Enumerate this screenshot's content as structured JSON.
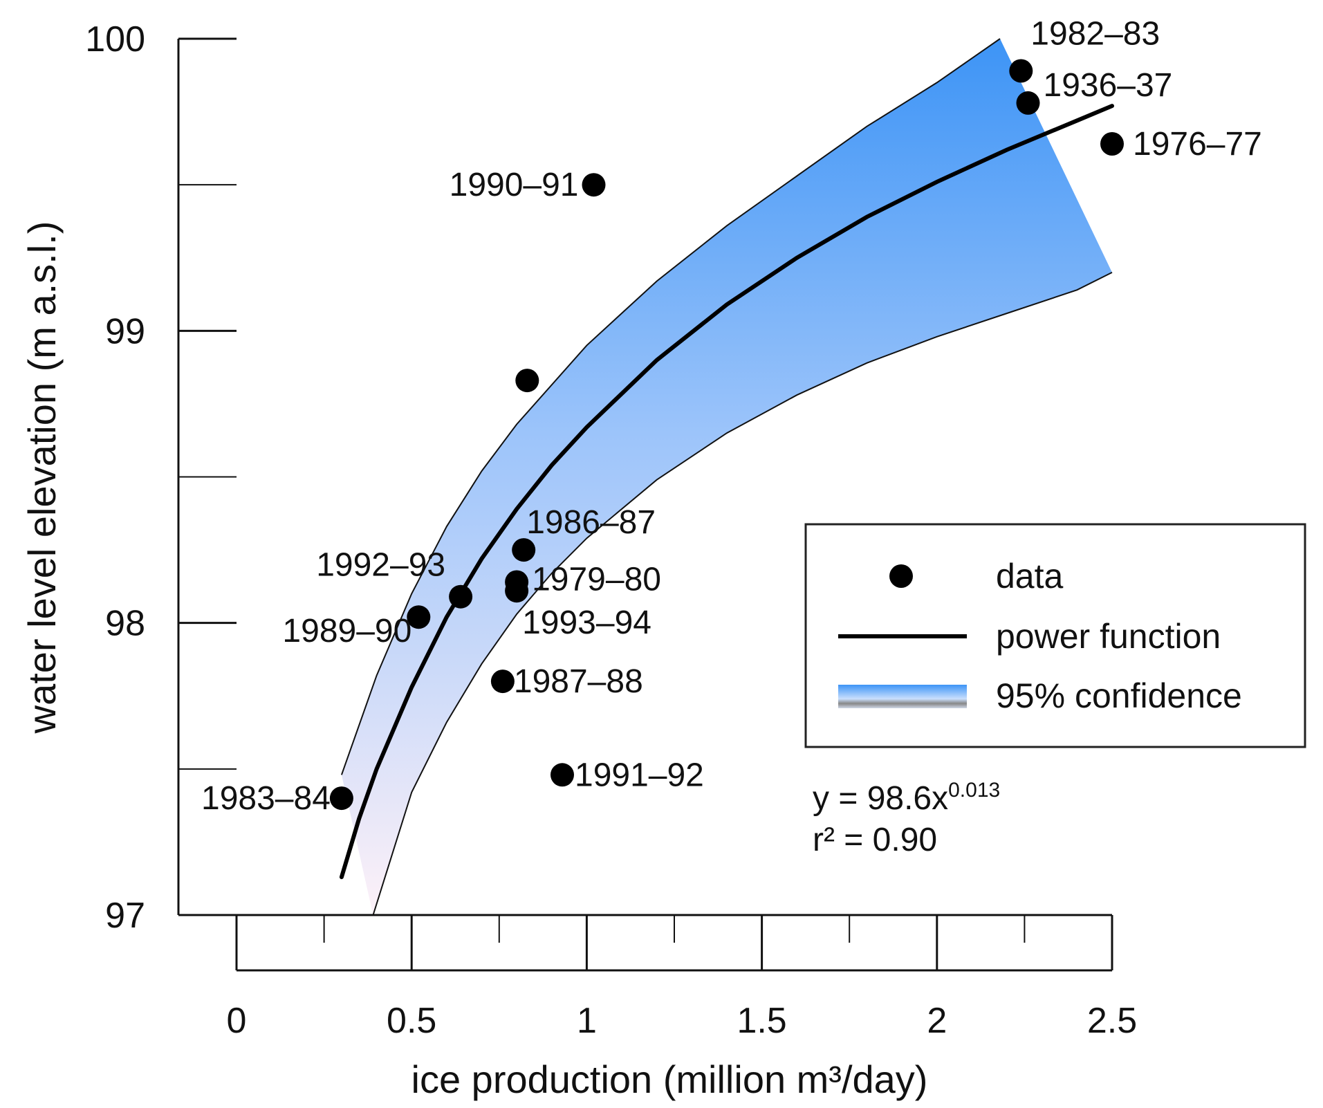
{
  "chart_data": {
    "type": "scatter",
    "xlabel": "ice production (million m³/day)",
    "ylabel": "water level elevation (m a.s.l.)",
    "xlim": [
      0,
      2.5
    ],
    "ylim": [
      97,
      100
    ],
    "x_ticks": [
      0,
      0.5,
      1,
      1.5,
      2,
      2.5
    ],
    "x_minor_ticks": [
      0.25,
      0.75,
      1.25,
      1.75,
      2.25
    ],
    "y_ticks": [
      97,
      98,
      99,
      100
    ],
    "y_minor_ticks": [
      97.5,
      98.5,
      99.5
    ],
    "series": [
      {
        "name": "data",
        "type": "scatter",
        "points": [
          {
            "label": "1982–83",
            "x": 2.24,
            "y": 99.89
          },
          {
            "label": "1936–37",
            "x": 2.26,
            "y": 99.78
          },
          {
            "label": "1976–77",
            "x": 2.5,
            "y": 99.64
          },
          {
            "label": "1990–91",
            "x": 1.02,
            "y": 99.5
          },
          {
            "label": "",
            "x": 0.83,
            "y": 98.83
          },
          {
            "label": "1986–87",
            "x": 0.82,
            "y": 98.25
          },
          {
            "label": "1979–80",
            "x": 0.8,
            "y": 98.14
          },
          {
            "label": "1993–94",
            "x": 0.8,
            "y": 98.11
          },
          {
            "label": "1992–93",
            "x": 0.64,
            "y": 98.09
          },
          {
            "label": "1989–90",
            "x": 0.52,
            "y": 98.02
          },
          {
            "label": "1987–88",
            "x": 0.76,
            "y": 97.8
          },
          {
            "label": "1991–92",
            "x": 0.93,
            "y": 97.48
          },
          {
            "label": "1983–84",
            "x": 0.3,
            "y": 97.4
          }
        ]
      },
      {
        "name": "power function",
        "type": "line",
        "x": [
          0.3,
          0.35,
          0.4,
          0.5,
          0.6,
          0.7,
          0.8,
          0.9,
          1.0,
          1.2,
          1.4,
          1.6,
          1.8,
          2.0,
          2.2,
          2.4,
          2.5
        ],
        "y": [
          97.13,
          97.33,
          97.5,
          97.78,
          98.02,
          98.22,
          98.39,
          98.54,
          98.67,
          98.9,
          99.09,
          99.25,
          99.39,
          99.51,
          99.62,
          99.72,
          99.77
        ]
      },
      {
        "name": "95% confidence",
        "type": "band",
        "upper": {
          "x": [
            0.3,
            0.4,
            0.5,
            0.6,
            0.7,
            0.8,
            1.0,
            1.2,
            1.4,
            1.6,
            1.8,
            2.0,
            2.18
          ],
          "y": [
            97.48,
            97.82,
            98.1,
            98.33,
            98.52,
            98.68,
            98.95,
            99.17,
            99.36,
            99.53,
            99.7,
            99.85,
            100.0
          ]
        },
        "lower": {
          "x": [
            0.39,
            0.5,
            0.6,
            0.7,
            0.8,
            0.9,
            1.0,
            1.2,
            1.4,
            1.6,
            1.8,
            2.0,
            2.2,
            2.4,
            2.5
          ],
          "y": [
            97.0,
            97.42,
            97.66,
            97.86,
            98.03,
            98.17,
            98.29,
            98.49,
            98.65,
            98.78,
            98.89,
            98.98,
            99.06,
            99.14,
            99.2
          ]
        },
        "right_edge": {
          "x": [
            2.21,
            2.5
          ],
          "y": [
            100.0,
            99.2
          ]
        }
      }
    ],
    "legend": {
      "position": "right",
      "entries": [
        "data",
        "power function",
        "95% confidence"
      ]
    },
    "annotation": {
      "equation_prefix": "y = 98.6x",
      "equation_exponent": "0.013",
      "r_squared": "r² = 0.90"
    },
    "colors": {
      "band_top": "#3d94f6",
      "band_mid": "#9cc4fa",
      "band_bottom": "#fdf1f8",
      "points": "#000000",
      "line": "#000000"
    }
  }
}
